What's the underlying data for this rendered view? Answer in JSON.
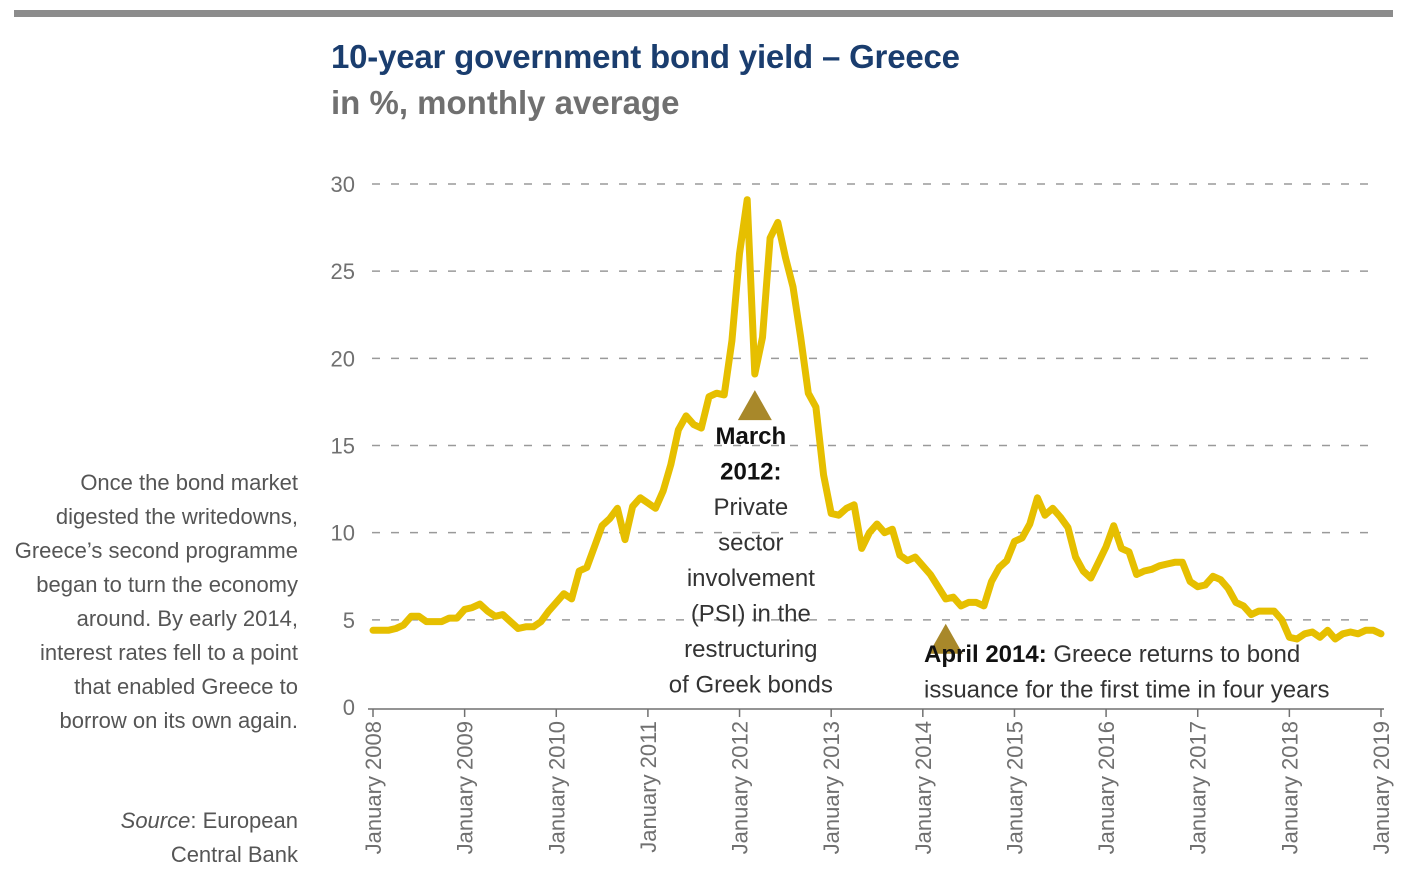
{
  "header": {
    "title": "10-year government bond yield – Greece",
    "subtitle": "in %, monthly average"
  },
  "side_note": "Once the bond market digested the writedowns, Greece’s second programme began to turn the economy around. By early 2014, interest rates fell to a point that enabled Greece to borrow on its own again.",
  "source": {
    "label": "Source",
    "text": ": European Central Bank"
  },
  "colors": {
    "line": "#e6bf00",
    "marker": "#a8882a",
    "grid": "#9a9a9a",
    "title": "#1a3d6e"
  },
  "chart_data": {
    "type": "line",
    "title": "10-year government bond yield – Greece",
    "subtitle": "in %, monthly average",
    "xlabel": "",
    "ylabel": "",
    "ylim": [
      0,
      30
    ],
    "yticks": [
      0,
      5,
      10,
      15,
      20,
      25,
      30
    ],
    "xlim": [
      2008.0,
      2019.0
    ],
    "x_tick_labels": [
      {
        "x": 2008,
        "label": "January 2008"
      },
      {
        "x": 2009,
        "label": "January 2009"
      },
      {
        "x": 2010,
        "label": "January 2010"
      },
      {
        "x": 2011,
        "label": "January 2011"
      },
      {
        "x": 2012,
        "label": "January 2012"
      },
      {
        "x": 2013,
        "label": "January 2013"
      },
      {
        "x": 2014,
        "label": "January 2014"
      },
      {
        "x": 2015,
        "label": "January 2015"
      },
      {
        "x": 2016,
        "label": "January 2016"
      },
      {
        "x": 2017,
        "label": "January 2017"
      },
      {
        "x": 2018,
        "label": "January 2018"
      },
      {
        "x": 2019,
        "label": "January 2019"
      }
    ],
    "grid": "horizontal dashed",
    "series": [
      {
        "name": "10-year government bond yield",
        "points": [
          [
            2008.0,
            4.4
          ],
          [
            2008.083,
            4.4
          ],
          [
            2008.167,
            4.4
          ],
          [
            2008.25,
            4.5
          ],
          [
            2008.333,
            4.7
          ],
          [
            2008.417,
            5.2
          ],
          [
            2008.5,
            5.2
          ],
          [
            2008.583,
            4.9
          ],
          [
            2008.667,
            4.9
          ],
          [
            2008.75,
            4.9
          ],
          [
            2008.833,
            5.1
          ],
          [
            2008.917,
            5.1
          ],
          [
            2009.0,
            5.6
          ],
          [
            2009.083,
            5.7
          ],
          [
            2009.167,
            5.9
          ],
          [
            2009.25,
            5.5
          ],
          [
            2009.333,
            5.2
          ],
          [
            2009.417,
            5.3
          ],
          [
            2009.5,
            4.9
          ],
          [
            2009.583,
            4.5
          ],
          [
            2009.667,
            4.6
          ],
          [
            2009.75,
            4.6
          ],
          [
            2009.833,
            4.9
          ],
          [
            2009.917,
            5.5
          ],
          [
            2010.0,
            6.0
          ],
          [
            2010.083,
            6.5
          ],
          [
            2010.167,
            6.2
          ],
          [
            2010.25,
            7.8
          ],
          [
            2010.333,
            8.0
          ],
          [
            2010.417,
            9.2
          ],
          [
            2010.5,
            10.4
          ],
          [
            2010.583,
            10.8
          ],
          [
            2010.667,
            11.4
          ],
          [
            2010.75,
            9.6
          ],
          [
            2010.833,
            11.5
          ],
          [
            2010.917,
            12.0
          ],
          [
            2011.0,
            11.7
          ],
          [
            2011.083,
            11.4
          ],
          [
            2011.167,
            12.4
          ],
          [
            2011.25,
            13.9
          ],
          [
            2011.333,
            15.9
          ],
          [
            2011.417,
            16.7
          ],
          [
            2011.5,
            16.2
          ],
          [
            2011.583,
            16.0
          ],
          [
            2011.667,
            17.8
          ],
          [
            2011.75,
            18.0
          ],
          [
            2011.833,
            17.9
          ],
          [
            2011.917,
            21.0
          ],
          [
            2012.0,
            26.0
          ],
          [
            2012.083,
            29.1
          ],
          [
            2012.167,
            19.1
          ],
          [
            2012.25,
            21.2
          ],
          [
            2012.333,
            26.9
          ],
          [
            2012.417,
            27.8
          ],
          [
            2012.5,
            25.8
          ],
          [
            2012.583,
            24.1
          ],
          [
            2012.667,
            21.2
          ],
          [
            2012.75,
            18.0
          ],
          [
            2012.833,
            17.2
          ],
          [
            2012.917,
            13.3
          ],
          [
            2013.0,
            11.1
          ],
          [
            2013.083,
            11.0
          ],
          [
            2013.167,
            11.4
          ],
          [
            2013.25,
            11.6
          ],
          [
            2013.333,
            9.1
          ],
          [
            2013.417,
            10.0
          ],
          [
            2013.5,
            10.5
          ],
          [
            2013.583,
            10.0
          ],
          [
            2013.667,
            10.2
          ],
          [
            2013.75,
            8.7
          ],
          [
            2013.833,
            8.4
          ],
          [
            2013.917,
            8.6
          ],
          [
            2014.0,
            8.1
          ],
          [
            2014.083,
            7.6
          ],
          [
            2014.167,
            6.9
          ],
          [
            2014.25,
            6.2
          ],
          [
            2014.333,
            6.3
          ],
          [
            2014.417,
            5.8
          ],
          [
            2014.5,
            6.0
          ],
          [
            2014.583,
            6.0
          ],
          [
            2014.667,
            5.8
          ],
          [
            2014.75,
            7.2
          ],
          [
            2014.833,
            8.0
          ],
          [
            2014.917,
            8.4
          ],
          [
            2015.0,
            9.5
          ],
          [
            2015.083,
            9.7
          ],
          [
            2015.167,
            10.5
          ],
          [
            2015.25,
            12.0
          ],
          [
            2015.333,
            11.0
          ],
          [
            2015.417,
            11.4
          ],
          [
            2015.5,
            10.9
          ],
          [
            2015.583,
            10.3
          ],
          [
            2015.667,
            8.6
          ],
          [
            2015.75,
            7.8
          ],
          [
            2015.833,
            7.4
          ],
          [
            2015.917,
            8.3
          ],
          [
            2016.0,
            9.2
          ],
          [
            2016.083,
            10.4
          ],
          [
            2016.167,
            9.1
          ],
          [
            2016.25,
            8.9
          ],
          [
            2016.333,
            7.6
          ],
          [
            2016.417,
            7.8
          ],
          [
            2016.5,
            7.9
          ],
          [
            2016.583,
            8.1
          ],
          [
            2016.667,
            8.2
          ],
          [
            2016.75,
            8.3
          ],
          [
            2016.833,
            8.3
          ],
          [
            2016.917,
            7.2
          ],
          [
            2017.0,
            6.9
          ],
          [
            2017.083,
            7.0
          ],
          [
            2017.167,
            7.5
          ],
          [
            2017.25,
            7.3
          ],
          [
            2017.333,
            6.8
          ],
          [
            2017.417,
            6.0
          ],
          [
            2017.5,
            5.8
          ],
          [
            2017.583,
            5.3
          ],
          [
            2017.667,
            5.5
          ],
          [
            2017.75,
            5.5
          ],
          [
            2017.833,
            5.5
          ],
          [
            2017.917,
            5.0
          ],
          [
            2018.0,
            4.0
          ],
          [
            2018.083,
            3.9
          ],
          [
            2018.167,
            4.2
          ],
          [
            2018.25,
            4.3
          ],
          [
            2018.333,
            4.0
          ],
          [
            2018.417,
            4.4
          ],
          [
            2018.5,
            3.9
          ],
          [
            2018.583,
            4.2
          ],
          [
            2018.667,
            4.3
          ],
          [
            2018.75,
            4.2
          ],
          [
            2018.833,
            4.4
          ],
          [
            2018.917,
            4.4
          ],
          [
            2019.0,
            4.2
          ]
        ]
      }
    ],
    "annotations": [
      {
        "id": "march2012",
        "x": 2012.167,
        "y": 17.2,
        "lines": [
          {
            "text": "March",
            "bold": true
          },
          {
            "text": "2012:",
            "bold": true
          },
          {
            "text": "Private",
            "bold": false
          },
          {
            "text": "sector",
            "bold": false
          },
          {
            "text": "involvement",
            "bold": false
          },
          {
            "text": "(PSI) in the",
            "bold": false
          },
          {
            "text": "restructuring",
            "bold": false
          },
          {
            "text": "of Greek bonds",
            "bold": false
          }
        ]
      },
      {
        "id": "april2014",
        "x": 2014.25,
        "y": 3.8,
        "lines": [
          {
            "bold_text": "April 2014:",
            "text": " Greece returns to bond"
          },
          {
            "bold_text": "",
            "text": "issuance for the first time in four years"
          }
        ]
      }
    ]
  }
}
